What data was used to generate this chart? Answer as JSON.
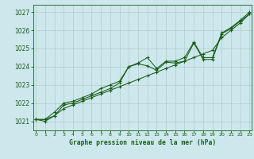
{
  "title": "Graphe pression niveau de la mer (hPa)",
  "bg_color": "#cde8ec",
  "grid_color": "#b0cccc",
  "line_color": "#1a5c1a",
  "x_ticks": [
    0,
    1,
    2,
    3,
    4,
    5,
    6,
    7,
    8,
    9,
    10,
    11,
    12,
    13,
    14,
    15,
    16,
    17,
    18,
    19,
    20,
    21,
    22,
    23
  ],
  "y_ticks": [
    1021,
    1022,
    1023,
    1024,
    1025,
    1026,
    1027
  ],
  "xlim": [
    -0.3,
    23.2
  ],
  "ylim": [
    1020.5,
    1027.4
  ],
  "series": {
    "line_straight": [
      1021.1,
      1021.1,
      1021.3,
      1021.7,
      1021.9,
      1022.1,
      1022.3,
      1022.5,
      1022.7,
      1022.9,
      1023.1,
      1023.3,
      1023.5,
      1023.7,
      1023.9,
      1024.1,
      1024.3,
      1024.5,
      1024.7,
      1024.9,
      1025.6,
      1026.0,
      1026.4,
      1026.9
    ],
    "line_mid": [
      1021.1,
      1021.0,
      1021.3,
      1021.9,
      1022.0,
      1022.2,
      1022.4,
      1022.6,
      1022.8,
      1023.1,
      1024.0,
      1024.15,
      1024.05,
      1023.8,
      1024.25,
      1024.2,
      1024.3,
      1025.3,
      1024.4,
      1024.4,
      1025.8,
      1026.1,
      1026.5,
      1026.9
    ],
    "line_upper": [
      1021.1,
      1021.1,
      1021.5,
      1022.0,
      1022.1,
      1022.3,
      1022.5,
      1022.8,
      1023.0,
      1023.2,
      1024.0,
      1024.2,
      1024.5,
      1023.9,
      1024.3,
      1024.3,
      1024.5,
      1025.35,
      1024.5,
      1024.5,
      1025.85,
      1026.15,
      1026.55,
      1027.0
    ]
  }
}
